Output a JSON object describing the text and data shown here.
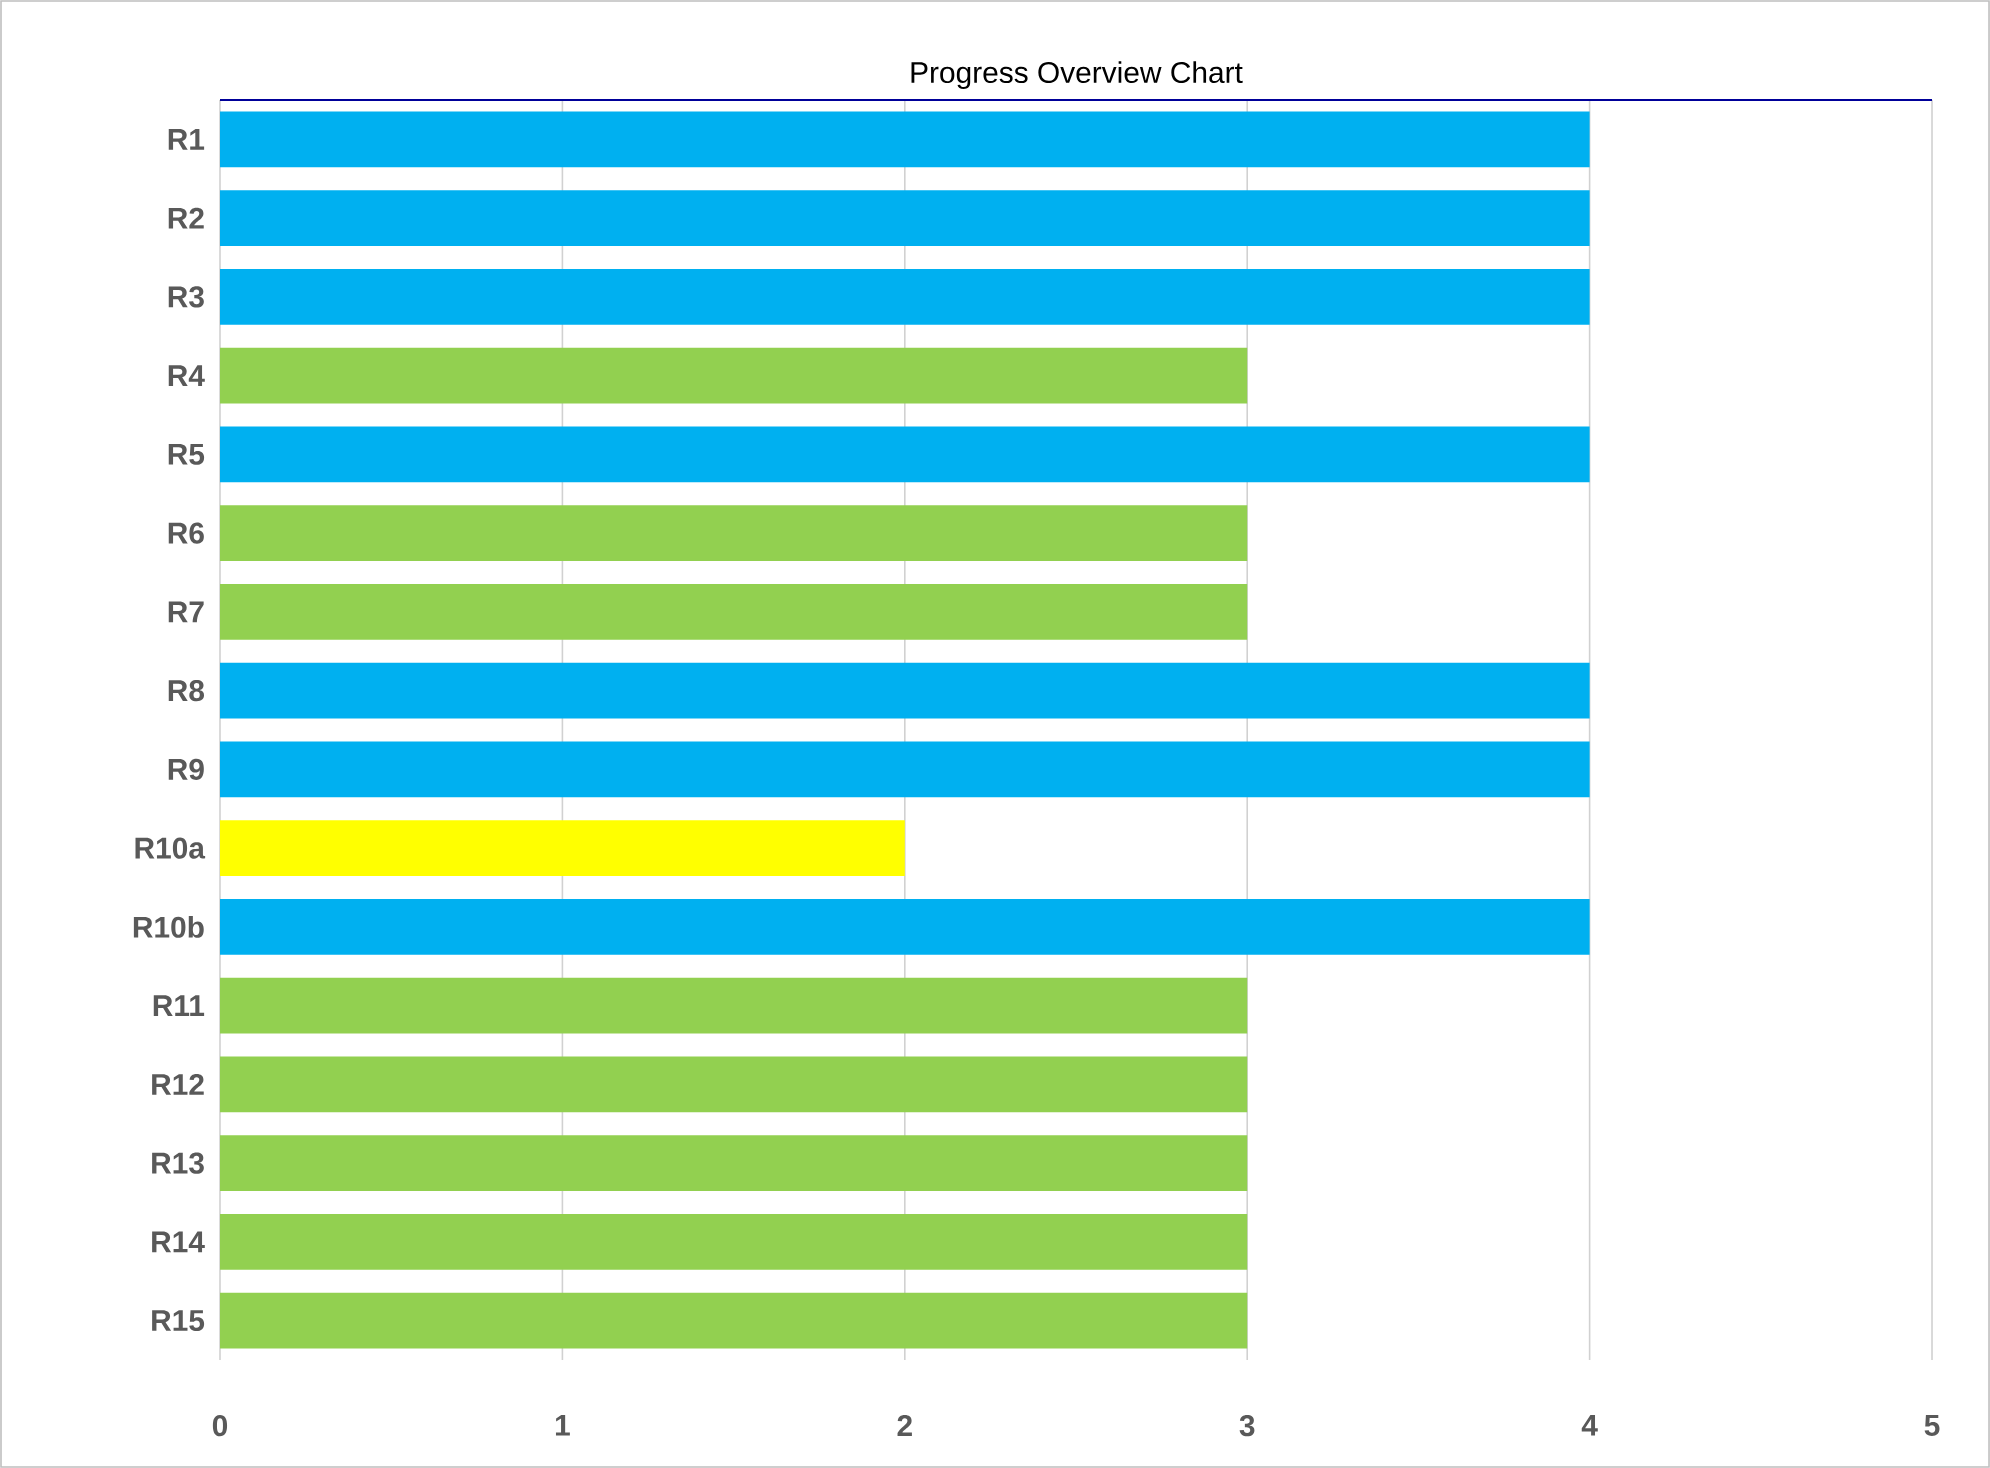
{
  "chart_data": {
    "type": "bar",
    "orientation": "horizontal",
    "title": "Progress Overview Chart",
    "categories": [
      "R1",
      "R2",
      "R3",
      "R4",
      "R5",
      "R6",
      "R7",
      "R8",
      "R9",
      "R10a",
      "R10b",
      "R11",
      "R12",
      "R13",
      "R14",
      "R15"
    ],
    "values": [
      4,
      4,
      4,
      3,
      4,
      3,
      3,
      4,
      4,
      2,
      4,
      3,
      3,
      3,
      3,
      3
    ],
    "colors": [
      "#00b0f0",
      "#00b0f0",
      "#00b0f0",
      "#92d050",
      "#00b0f0",
      "#92d050",
      "#92d050",
      "#00b0f0",
      "#00b0f0",
      "#ffff00",
      "#00b0f0",
      "#92d050",
      "#92d050",
      "#92d050",
      "#92d050",
      "#92d050"
    ],
    "xlim": [
      0,
      5
    ],
    "xticks": [
      0,
      1,
      2,
      3,
      4,
      5
    ],
    "grid": "x"
  }
}
